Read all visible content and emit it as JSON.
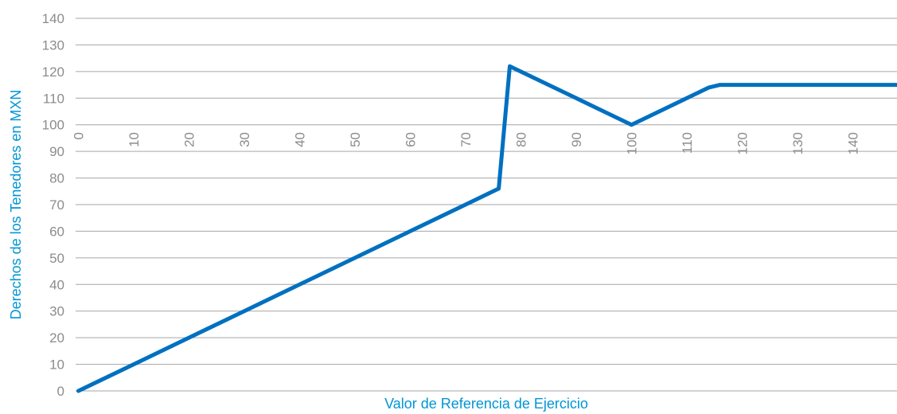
{
  "chart_data": {
    "type": "line",
    "title": "",
    "xlabel": "Valor de Referencia de Ejercicio",
    "ylabel": "Derechos de los Tenedores en MXN",
    "xlim": [
      -0.5,
      148
    ],
    "ylim": [
      0,
      140
    ],
    "x_ticks": [
      "0",
      "10",
      "20",
      "30",
      "40",
      "50",
      "60",
      "70",
      "80",
      "90",
      "100",
      "110",
      "120",
      "130",
      "140"
    ],
    "y_ticks": [
      "0",
      "10",
      "20",
      "30",
      "40",
      "50",
      "60",
      "70",
      "80",
      "90",
      "100",
      "110",
      "120",
      "130",
      "140"
    ],
    "grid": true,
    "series": [
      {
        "x": [
          0,
          10,
          20,
          30,
          40,
          50,
          60,
          70,
          76,
          78,
          90,
          100,
          110,
          114,
          116,
          148
        ],
        "y": [
          0,
          10,
          20,
          30,
          40,
          50,
          60,
          70,
          76,
          122,
          110,
          100,
          110,
          114,
          115,
          115
        ]
      }
    ],
    "colors": {
      "line": "#0070c0",
      "grid": "#a6a6a6",
      "tick_text": "#8c8c8c",
      "axis_title": "#0095d6"
    }
  }
}
